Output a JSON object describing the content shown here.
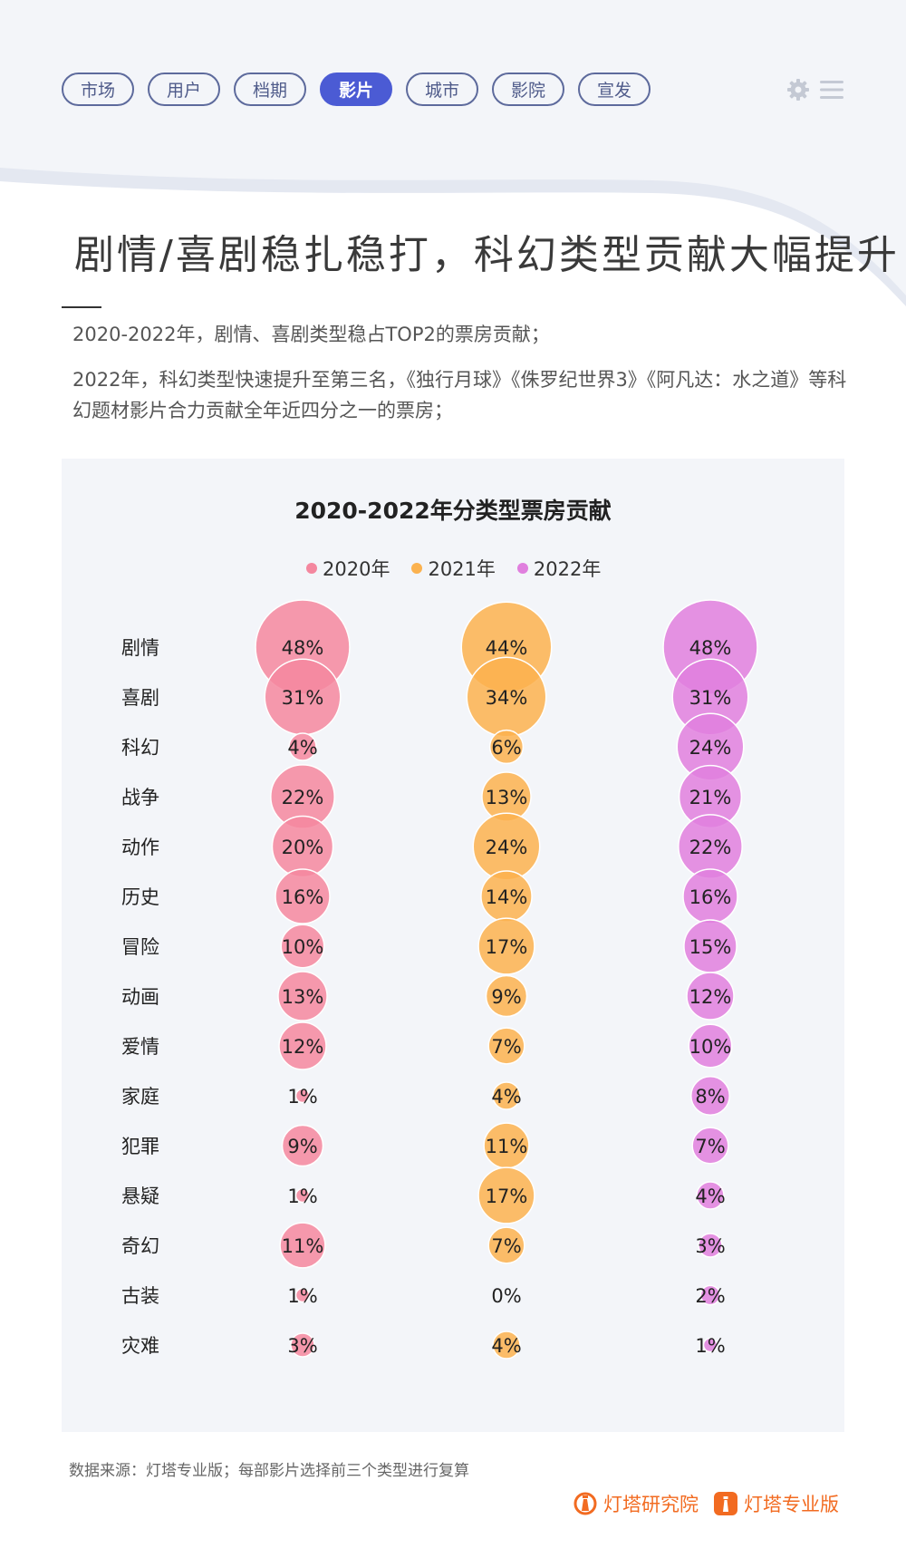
{
  "nav": {
    "tabs": [
      "市场",
      "用户",
      "档期",
      "影片",
      "城市",
      "影院",
      "宣发"
    ],
    "active_index": 3
  },
  "tools": {
    "settings_icon": "gear-icon",
    "menu_icon": "hamburger-menu-icon"
  },
  "title": "剧情/喜剧稳扎稳打，科幻类型贡献大幅提升",
  "description": [
    "2020-2022年，剧情、喜剧类型稳占TOP2的票房贡献；",
    "2022年，科幻类型快速提升至第三名，《独行月球》《侏罗纪世界3》《阿凡达：水之道》等科幻题材影片合力贡献全年近四分之一的票房；"
  ],
  "chart_data": {
    "type": "bubble",
    "title": "2020-2022年分类型票房贡献",
    "unit": "%",
    "categories": [
      "剧情",
      "喜剧",
      "科幻",
      "战争",
      "动作",
      "历史",
      "冒险",
      "动画",
      "爱情",
      "家庭",
      "犯罪",
      "悬疑",
      "奇幻",
      "古装",
      "灾难"
    ],
    "series": [
      {
        "name": "2020年",
        "color": "#f4879f",
        "values": [
          48,
          31,
          4,
          22,
          20,
          16,
          10,
          13,
          12,
          1,
          9,
          1,
          11,
          1,
          3
        ]
      },
      {
        "name": "2021年",
        "color": "#fbb24f",
        "values": [
          44,
          34,
          6,
          13,
          24,
          14,
          17,
          9,
          7,
          4,
          11,
          17,
          7,
          0,
          4
        ]
      },
      {
        "name": "2022年",
        "color": "#e07fde",
        "values": [
          48,
          31,
          24,
          21,
          22,
          16,
          15,
          12,
          10,
          8,
          7,
          4,
          3,
          2,
          1
        ]
      }
    ],
    "legend_position": "top-center",
    "grid": false
  },
  "footer": {
    "source": "数据来源：灯塔专业版；每部影片选择前三个类型进行复算",
    "brands": [
      "灯塔研究院",
      "灯塔专业版"
    ],
    "brand_color": "#f26b21"
  }
}
